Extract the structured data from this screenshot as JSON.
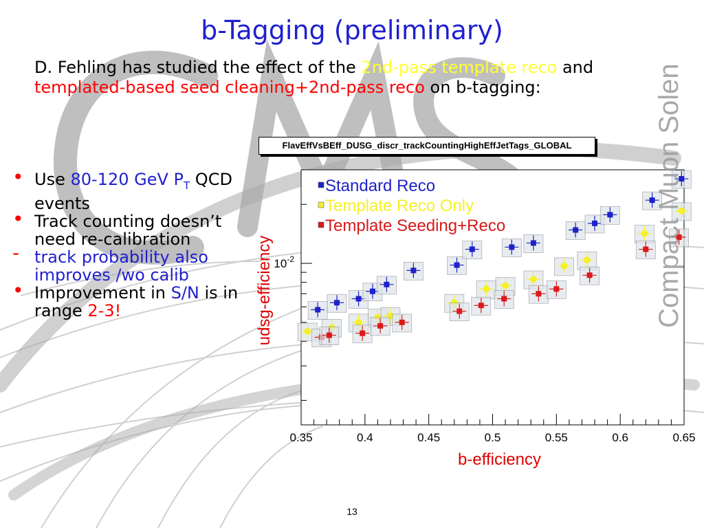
{
  "slide": {
    "title": "b-Tagging (preliminary)",
    "intro": {
      "p1": "D. Fehling has studied the effect of the ",
      "p2": "2nd-pass template reco",
      "p3": " and ",
      "p4": "templated-based seed cleaning+2nd-pass reco",
      "p5": " on b-tagging:"
    },
    "bullets": {
      "b1_a": "Use ",
      "b1_b": "80-120 GeV P",
      "b1_sub": "T",
      "b1_c": " QCD events",
      "b2": "Track counting doesn’t need re-calibration",
      "b3_marker": "-",
      "b3": "track probability also improves /wo calib",
      "b4_a": "Improvement in ",
      "b4_b": "S/N",
      "b4_c": " is in range ",
      "b4_d": "2-3!"
    },
    "page_number": "13",
    "watermark": "Compact Muon Solenoid",
    "colors": {
      "title": "#1f1fd0",
      "highlight_yellow": "#ffff33",
      "highlight_red": "#ff0000"
    }
  },
  "chart_data": {
    "type": "scatter",
    "histogram_name": "FlavEffVsBEff_DUSG_discr_trackCountingHighEffJetTags_GLOBAL",
    "xlabel": "b-efficiency",
    "ylabel": "udsg-efficiency",
    "xlim": [
      0.35,
      0.65
    ],
    "ylim": [
      0.0015,
      0.03
    ],
    "yscale": "log",
    "x_ticks": [
      "0.35",
      "0.4",
      "0.45",
      "0.5",
      "0.55",
      "0.6",
      "0.65"
    ],
    "y_tick_base": "10",
    "y_tick_exp": "-2",
    "legend_position": "top-left",
    "series": [
      {
        "name": "Standard Reco",
        "color": "#1e22c8",
        "x": [
          0.363,
          0.378,
          0.395,
          0.406,
          0.417,
          0.438,
          0.472,
          0.484,
          0.515,
          0.532,
          0.565,
          0.58,
          0.592,
          0.625,
          0.648
        ],
        "y": [
          0.0058,
          0.0063,
          0.0066,
          0.0072,
          0.0078,
          0.0092,
          0.0098,
          0.0118,
          0.0121,
          0.0127,
          0.0148,
          0.016,
          0.0177,
          0.021,
          0.027
        ]
      },
      {
        "name": "Template Reco Only",
        "color": "#f5f02a",
        "x": [
          0.355,
          0.374,
          0.395,
          0.41,
          0.42,
          0.47,
          0.495,
          0.51,
          0.532,
          0.556,
          0.574,
          0.619,
          0.648
        ],
        "y": [
          0.0045,
          0.0047,
          0.005,
          0.0053,
          0.0054,
          0.0063,
          0.0074,
          0.0077,
          0.0083,
          0.0097,
          0.0104,
          0.0142,
          0.0185
        ]
      },
      {
        "name": "Template Seeding+Reco",
        "color": "#d81a1a",
        "x": [
          0.366,
          0.372,
          0.398,
          0.412,
          0.429,
          0.474,
          0.491,
          0.509,
          0.536,
          0.55,
          0.576,
          0.62,
          0.646
        ],
        "y": [
          0.0042,
          0.0043,
          0.0044,
          0.0048,
          0.005,
          0.0057,
          0.0061,
          0.0066,
          0.007,
          0.0074,
          0.0087,
          0.0118,
          0.0136
        ]
      }
    ]
  }
}
